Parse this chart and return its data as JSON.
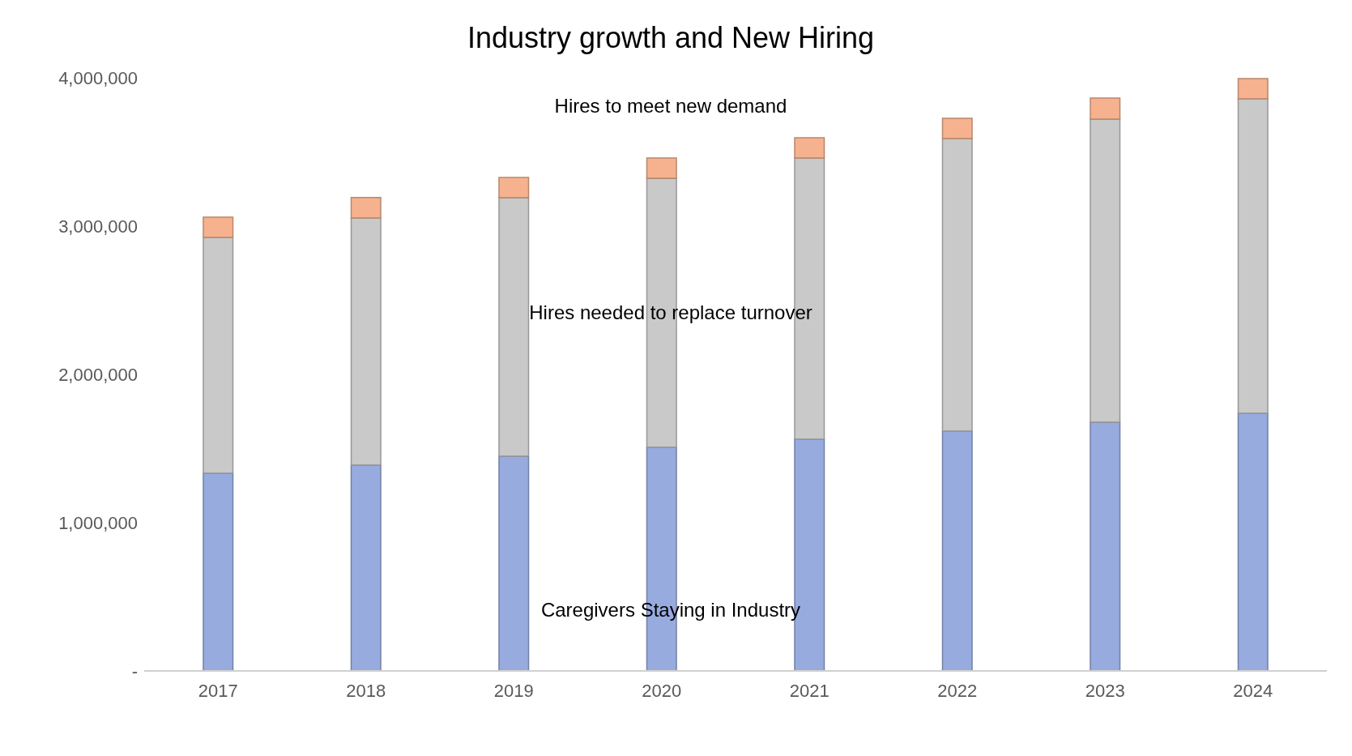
{
  "chart_data": {
    "type": "bar",
    "title": "Industry growth and New Hiring",
    "stacked": true,
    "categories": [
      "2017",
      "2018",
      "2019",
      "2020",
      "2021",
      "2022",
      "2023",
      "2024"
    ],
    "series": [
      {
        "name": "Caregivers Staying in Industry",
        "color": "#98abdf",
        "values": [
          1333000,
          1388000,
          1448000,
          1508000,
          1563000,
          1617000,
          1678000,
          1738000
        ]
      },
      {
        "name": "Hires needed to replace turnover",
        "color": "#c9c9c9",
        "values": [
          1590000,
          1667000,
          1743000,
          1814000,
          1896000,
          1973000,
          2043000,
          2120000
        ]
      },
      {
        "name": "Hires to meet new demand",
        "color": "#f6b28e",
        "values": [
          137000,
          137000,
          137000,
          137000,
          137000,
          137000,
          142000,
          137000
        ]
      }
    ],
    "ylim": [
      0,
      4000000
    ],
    "yticks": [
      {
        "value": 0,
        "label": "-"
      },
      {
        "value": 1000000,
        "label": "1,000,000"
      },
      {
        "value": 2000000,
        "label": "2,000,000"
      },
      {
        "value": 3000000,
        "label": "3,000,000"
      },
      {
        "value": 4000000,
        "label": "4,000,000"
      }
    ]
  }
}
